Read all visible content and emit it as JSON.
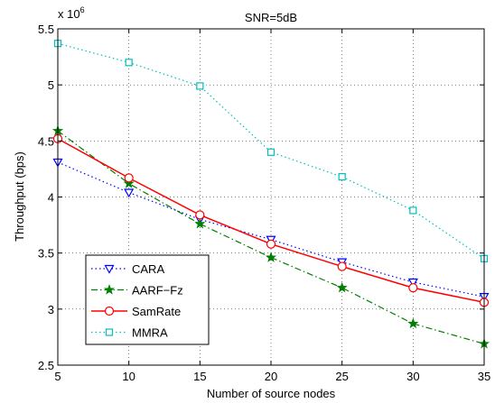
{
  "chart_data": {
    "type": "line",
    "title": "SNR=5dB",
    "xlabel": "Number of source nodes",
    "ylabel": "Throughput (bps)",
    "y_multiplier": "x 10",
    "y_exponent": "6",
    "x": [
      5,
      10,
      15,
      20,
      25,
      30,
      35
    ],
    "xlim": [
      5,
      35
    ],
    "ylim": [
      2.5,
      5.5
    ],
    "xticks": [
      "5",
      "10",
      "15",
      "20",
      "25",
      "30",
      "35"
    ],
    "yticks": [
      "2.5",
      "3",
      "3.5",
      "4",
      "4.5",
      "5",
      "5.5"
    ],
    "grid": true,
    "legend_position": "bottom-left",
    "series": [
      {
        "name": "CARA",
        "values": [
          4.31,
          4.04,
          3.8,
          3.62,
          3.42,
          3.24,
          3.11
        ],
        "color": "#0000ff",
        "line": "dotted",
        "marker": "triangle-down"
      },
      {
        "name": "AARF−Fz",
        "values": [
          4.59,
          4.12,
          3.76,
          3.46,
          3.19,
          2.87,
          2.69
        ],
        "color": "#007f00",
        "line": "dashdot",
        "marker": "star"
      },
      {
        "name": "SamRate",
        "values": [
          4.52,
          4.17,
          3.84,
          3.58,
          3.38,
          3.19,
          3.06
        ],
        "color": "#ff0000",
        "line": "solid",
        "marker": "circle"
      },
      {
        "name": "MMRA",
        "values": [
          5.37,
          5.2,
          4.99,
          4.4,
          4.18,
          3.88,
          3.45
        ],
        "color": "#00bfbf",
        "line": "dotted",
        "marker": "square"
      }
    ]
  }
}
